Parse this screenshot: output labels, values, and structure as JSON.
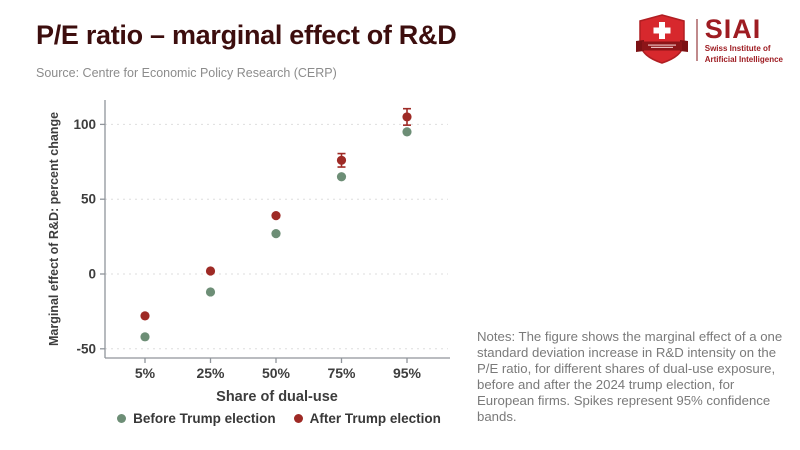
{
  "header": {
    "title": "P/E ratio – marginal effect of R&D",
    "title_color": "#3d0e0e",
    "source": "Source: Centre for Economic Policy Research (CERP)"
  },
  "logo": {
    "wordmark": "SIAI",
    "subtitle_line1": "Swiss Institute of",
    "subtitle_line2": "Artificial Intelligence",
    "text_color": "#9e1c22",
    "shield_color": "#d7282d",
    "ribbon_color": "#8c1518"
  },
  "chart_data": {
    "type": "scatter",
    "categories": [
      "5%",
      "25%",
      "50%",
      "75%",
      "95%"
    ],
    "series": [
      {
        "name": "Before Trump election",
        "color": "#6d8e76",
        "values": [
          -42,
          -12,
          27,
          65,
          95
        ],
        "ci_halfwidth": [
          0,
          0,
          0,
          0,
          0
        ]
      },
      {
        "name": "After Trump election",
        "color": "#9e2a25",
        "values": [
          -28,
          2,
          39,
          76,
          105
        ],
        "ci_halfwidth": [
          0,
          0,
          0,
          4.5,
          5.5
        ]
      }
    ],
    "xlabel": "Share of dual-use",
    "ylabel": "Marginal effect of R&D: percent change",
    "yticks": [
      -50,
      0,
      50,
      100
    ],
    "ylim": [
      -56,
      116
    ],
    "grid": "horizontal dashed",
    "legend_position": "bottom"
  },
  "notes": {
    "text": "Notes: The figure shows the marginal effect of a one standard deviation increase in R&D intensity on the P/E ratio, for different shares of dual-use exposure, before and after the 2024 trump election, for European firms. Spikes represent 95% confidence bands."
  }
}
